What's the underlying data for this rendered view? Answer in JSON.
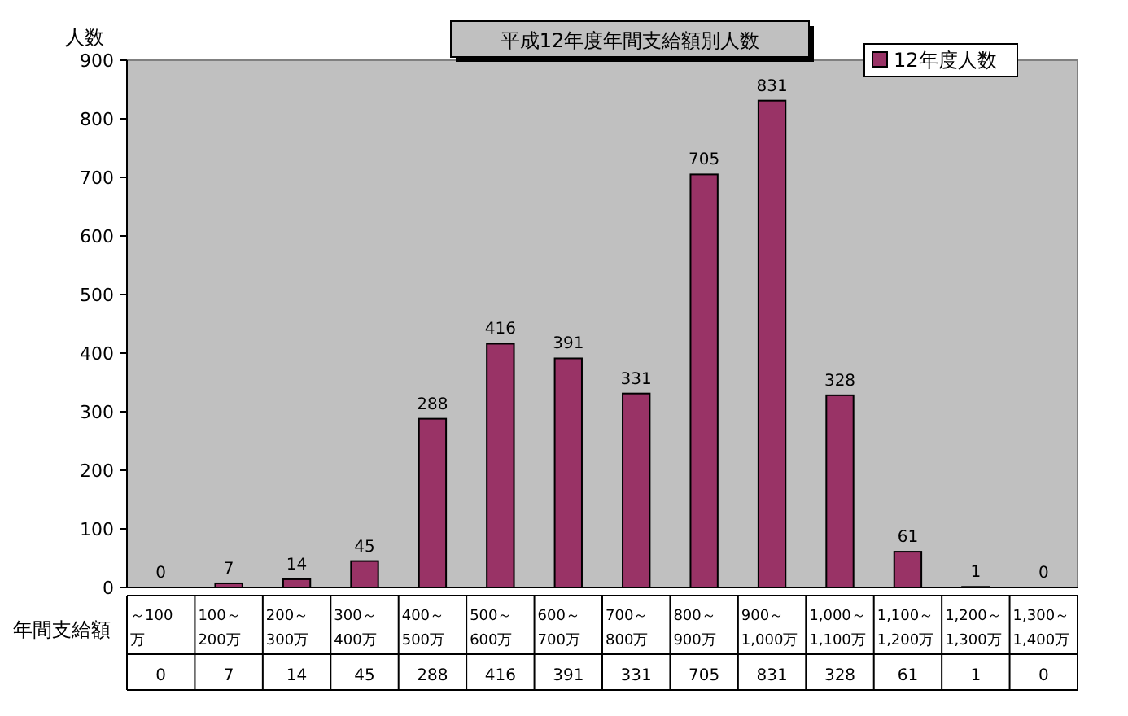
{
  "chart_data": {
    "type": "bar",
    "title": "平成12年度年間支給額別人数",
    "ylabel": "人数",
    "xlabel": "年間支給額",
    "categories": [
      "～100\n万",
      "100～\n200万",
      "200～\n300万",
      "300～\n400万",
      "400～\n500万",
      "500～\n600万",
      "600～\n700万",
      "700～\n800万",
      "800～\n900万",
      "900～\n1,000万",
      "1,000～\n1,100万",
      "1,100～\n1,200万",
      "1,200～\n1,300万",
      "1,300～\n1,400万"
    ],
    "series": [
      {
        "name": "12年度人数",
        "color": "#993366",
        "values": [
          0,
          7,
          14,
          45,
          288,
          416,
          391,
          331,
          705,
          831,
          328,
          61,
          1,
          0
        ],
        "value_labels": [
          "0",
          "7",
          "14",
          "45",
          "288",
          "416",
          "391",
          "331",
          "705",
          "831",
          "328",
          "61",
          "1",
          "0"
        ]
      }
    ],
    "ylim": [
      0,
      900
    ],
    "yticks": [
      0,
      100,
      200,
      300,
      400,
      500,
      600,
      700,
      800,
      900
    ],
    "annotations": [
      "0",
      "7",
      "14",
      "45",
      "288",
      "416",
      "391",
      "331",
      "705",
      "831",
      "328",
      "61",
      "1",
      "0"
    ],
    "legend": "top right",
    "grid": false
  }
}
